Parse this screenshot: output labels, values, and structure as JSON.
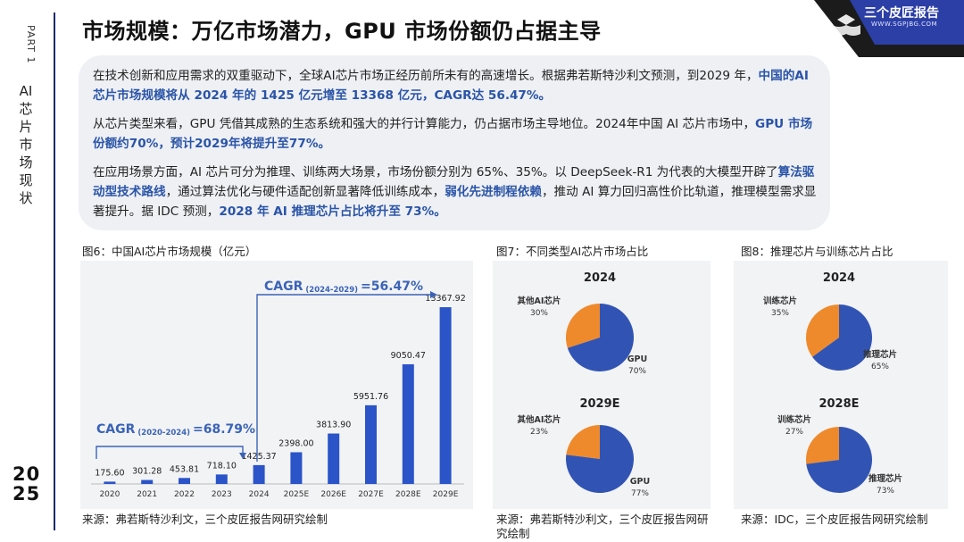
{
  "sidebar": {
    "part": "PART 1",
    "title": "AI芯片市场现状",
    "year_top": "20",
    "year_bottom": "25"
  },
  "header": {
    "title": "市场规模：万亿市场潜力，GPU 市场份额仍占据主导"
  },
  "logo": {
    "name": "三个皮匠报告",
    "domain": "WWW.SGPJBG.COM"
  },
  "intro": {
    "p1_a": "在技术创新和应用需求的双重驱动下，全球AI芯片市场正经历前所未有的高速增长。根据弗若斯特沙利文预测，到2029 年，",
    "p1_hl": "中国的AI芯片市场规模将从 2024 年的 1425 亿元增至 13368 亿元，CAGR达 56.47%。",
    "p2_a": "从芯片类型来看，GPU 凭借其成熟的生态系统和强大的并行计算能力，仍占据市场主导地位。2024年中国 AI 芯片市场中，",
    "p2_hl": "GPU 市场份额约70%，预计2029年将提升至77%。",
    "p3_a": "在应用场景方面，AI 芯片可分为推理、训练两大场景，市场份额分别为 65%、35%。以 DeepSeek-R1 为代表的大模型开辟了",
    "p3_hl1": "算法驱动型技术路线",
    "p3_b": "，通过算法优化与硬件适配创新显著降低训练成本，",
    "p3_hl2": "弱化先进制程依赖",
    "p3_c": "，推动 AI 算力回归高性价比轨道，推理模型需求显著提升。据 IDC 预测，",
    "p3_hl3": "2028 年 AI 推理芯片占比将升至 73%。"
  },
  "fig6": {
    "caption": "图6：中国AI芯片市场规模（亿元）",
    "source": "来源：弗若斯特沙利文，三个皮匠报告网研究绘制",
    "cagr1_label": "CAGR",
    "cagr1_sub": "(2020-2024)",
    "cagr1_value": "=68.79%",
    "cagr2_label": "CAGR",
    "cagr2_sub": "(2024-2029)",
    "cagr2_value": "=56.47%"
  },
  "fig7": {
    "caption": "图7：不同类型AI芯片市场占比",
    "source": "来源：弗若斯特沙利文，三个皮匠报告网研究绘制"
  },
  "fig8": {
    "caption": "图8：推理芯片与训练芯片占比",
    "source": "来源：IDC，三个皮匠报告网研究绘制"
  },
  "colors": {
    "bar": "#2a54c8",
    "pie_blue": "#3154b4",
    "pie_orange": "#ee8a2c",
    "highlight": "#2a54a8",
    "cagr": "#3a63b8"
  },
  "chart_data": [
    {
      "type": "bar",
      "title": "中国AI芯片市场规模（亿元）",
      "categories": [
        "2020",
        "2021",
        "2022",
        "2023",
        "2024",
        "2025E",
        "2026E",
        "2027E",
        "2028E",
        "2029E"
      ],
      "values": [
        175.6,
        301.28,
        453.81,
        718.1,
        1425.37,
        2398.0,
        3813.9,
        5951.76,
        9050.47,
        13367.92
      ],
      "value_labels": [
        "175.60",
        "301.28",
        "453.81",
        "718.10",
        "1425.37",
        "2398.00",
        "3813.90",
        "5951.76",
        "9050.47",
        "13367.92"
      ],
      "ylim": [
        0,
        14000
      ],
      "grid": false
    },
    {
      "type": "pie",
      "title": "2024",
      "slices": [
        {
          "label": "GPU",
          "value": 70,
          "pct": "70%"
        },
        {
          "label": "其他AI芯片",
          "value": 30,
          "pct": "30%"
        }
      ]
    },
    {
      "type": "pie",
      "title": "2029E",
      "slices": [
        {
          "label": "GPU",
          "value": 77,
          "pct": "77%"
        },
        {
          "label": "其他AI芯片",
          "value": 23,
          "pct": "23%"
        }
      ]
    },
    {
      "type": "pie",
      "title": "2024",
      "slices": [
        {
          "label": "推理芯片",
          "value": 65,
          "pct": "65%"
        },
        {
          "label": "训练芯片",
          "value": 35,
          "pct": "35%"
        }
      ]
    },
    {
      "type": "pie",
      "title": "2028E",
      "slices": [
        {
          "label": "推理芯片",
          "value": 73,
          "pct": "73%"
        },
        {
          "label": "训练芯片",
          "value": 27,
          "pct": "27%"
        }
      ]
    }
  ]
}
